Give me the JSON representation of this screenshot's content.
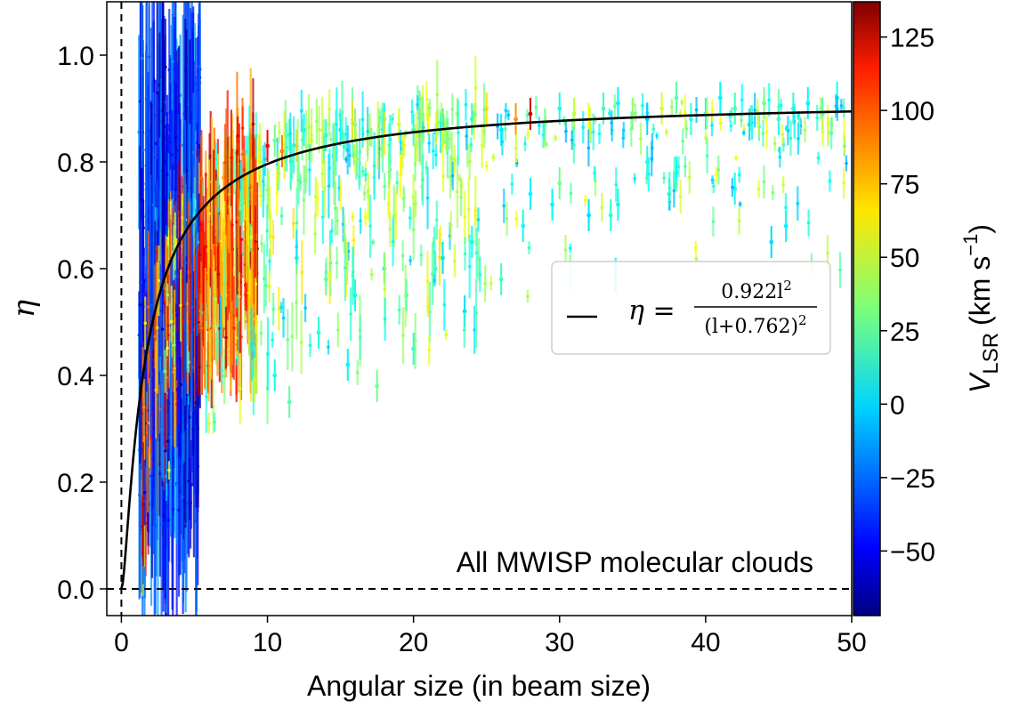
{
  "chart_data": {
    "type": "scatter",
    "title": "",
    "xlabel": "Angular size (in beam size)",
    "ylabel": "η",
    "xlim": [
      -1,
      50
    ],
    "ylim": [
      -0.05,
      1.1
    ],
    "xticks": [
      "0",
      "10",
      "20",
      "30",
      "40",
      "50"
    ],
    "yticks": [
      "0.0",
      "0.2",
      "0.4",
      "0.6",
      "0.8",
      "1.0"
    ],
    "annotation": "All MWISP molecular clouds",
    "reference_lines": {
      "vertical_x": 0,
      "horizontal_y": 0,
      "style": "dashed"
    },
    "fit_curve": {
      "name": "η = 0.922l² / (l+0.762)²",
      "legend": {
        "lhs": "η =",
        "numerator": "0.922l",
        "numerator_sup": "2",
        "denominator": "(l+0.762)",
        "denominator_sup": "2"
      },
      "a": 0.922,
      "b": 0.762,
      "color": "#000000"
    },
    "colorbar": {
      "label_main": "V",
      "label_sub": "LSR",
      "label_units": "(km s",
      "label_units_sup": "−1",
      "label_close": ")",
      "range": [
        -72,
        137
      ],
      "ticks": [
        -50,
        -25,
        0,
        25,
        50,
        75,
        100,
        125
      ],
      "tick_labels": [
        "−50",
        "−25",
        "0",
        "25",
        "50",
        "75",
        "100",
        "125"
      ],
      "colormap": "jet"
    },
    "series": [
      {
        "name": "",
        "description": "points with error bars colored by VLSR",
        "x": [
          1.5,
          1.8,
          2.0,
          2.2,
          2.5,
          2.8,
          3.0,
          3.3,
          3.6,
          4.0,
          4.4,
          4.8,
          5.2,
          1.6,
          2.1,
          2.6,
          3.1,
          3.8,
          4.5,
          5.5,
          6.0,
          6.5,
          7.0,
          7.5,
          8.0,
          8.5,
          9.0,
          9.5,
          10.0,
          10.5,
          11.0,
          11.5,
          12.0,
          12.5,
          13.0,
          14.0,
          15.0,
          16.0,
          17.0,
          18.0,
          19.0,
          20.0,
          21.0,
          22.0,
          23.0,
          24.0,
          25.0,
          26.0,
          27.0,
          28.0,
          29.0,
          30.0,
          31.0,
          32.0,
          33.0,
          34.0,
          35.0,
          36.0,
          37.0,
          38.0,
          39.0,
          40.0,
          41.0,
          42.0,
          43.0,
          44.0,
          45.0,
          46.0,
          47.0,
          48.0,
          49.0,
          12.0,
          14.0,
          16.0,
          18.0,
          20.0,
          22.0,
          24.0,
          26.0,
          28.0,
          30.0,
          32.0,
          34.0,
          36.0,
          38.0,
          44.5,
          45.5,
          6.5,
          7.5,
          9.0,
          10.5,
          11.5,
          13.5,
          15.5,
          17.5,
          19.5,
          21.5,
          23.5,
          27.5,
          29.5,
          33.5,
          37.5,
          42.0
        ],
        "y": [
          0.3,
          0.55,
          0.62,
          0.45,
          0.7,
          0.58,
          0.66,
          0.5,
          0.72,
          0.62,
          0.68,
          0.74,
          0.7,
          0.15,
          0.2,
          0.25,
          0.35,
          0.4,
          0.52,
          0.63,
          0.72,
          0.75,
          0.77,
          0.78,
          0.8,
          0.79,
          0.82,
          0.8,
          0.83,
          0.84,
          0.82,
          0.85,
          0.83,
          0.86,
          0.84,
          0.85,
          0.86,
          0.87,
          0.86,
          0.88,
          0.87,
          0.86,
          0.88,
          0.87,
          0.89,
          0.88,
          0.9,
          0.86,
          0.88,
          0.89,
          0.87,
          0.9,
          0.89,
          0.88,
          0.9,
          0.91,
          0.89,
          0.88,
          0.9,
          0.92,
          0.88,
          0.89,
          0.92,
          0.9,
          0.87,
          0.91,
          0.88,
          0.9,
          0.91,
          0.89,
          0.92,
          0.62,
          0.58,
          0.55,
          0.6,
          0.45,
          0.62,
          0.65,
          0.58,
          0.74,
          0.76,
          0.7,
          0.72,
          0.8,
          0.78,
          0.65,
          0.68,
          0.45,
          0.5,
          0.55,
          0.4,
          0.35,
          0.48,
          0.42,
          0.38,
          0.55,
          0.6,
          0.52,
          0.68,
          0.72,
          0.7,
          0.74,
          0.75
        ],
        "vlsr": [
          -50,
          -45,
          -40,
          -60,
          -30,
          -55,
          -20,
          -48,
          -35,
          -42,
          -25,
          -10,
          -38,
          95,
          110,
          80,
          70,
          90,
          100,
          85,
          105,
          95,
          75,
          88,
          100,
          60,
          92,
          40,
          110,
          30,
          85,
          20,
          70,
          10,
          55,
          15,
          5,
          35,
          45,
          10,
          50,
          20,
          60,
          0,
          40,
          15,
          65,
          5,
          80,
          120,
          30,
          10,
          45,
          55,
          20,
          5,
          35,
          0,
          50,
          25,
          15,
          10,
          5,
          20,
          0,
          30,
          10,
          15,
          5,
          25,
          10,
          20,
          30,
          10,
          5,
          15,
          0,
          10,
          20,
          5,
          30,
          0,
          10,
          15,
          5,
          0,
          5,
          40,
          30,
          20,
          10,
          25,
          15,
          5,
          30,
          10,
          20,
          0,
          10,
          5,
          15,
          20,
          10
        ]
      }
    ]
  }
}
